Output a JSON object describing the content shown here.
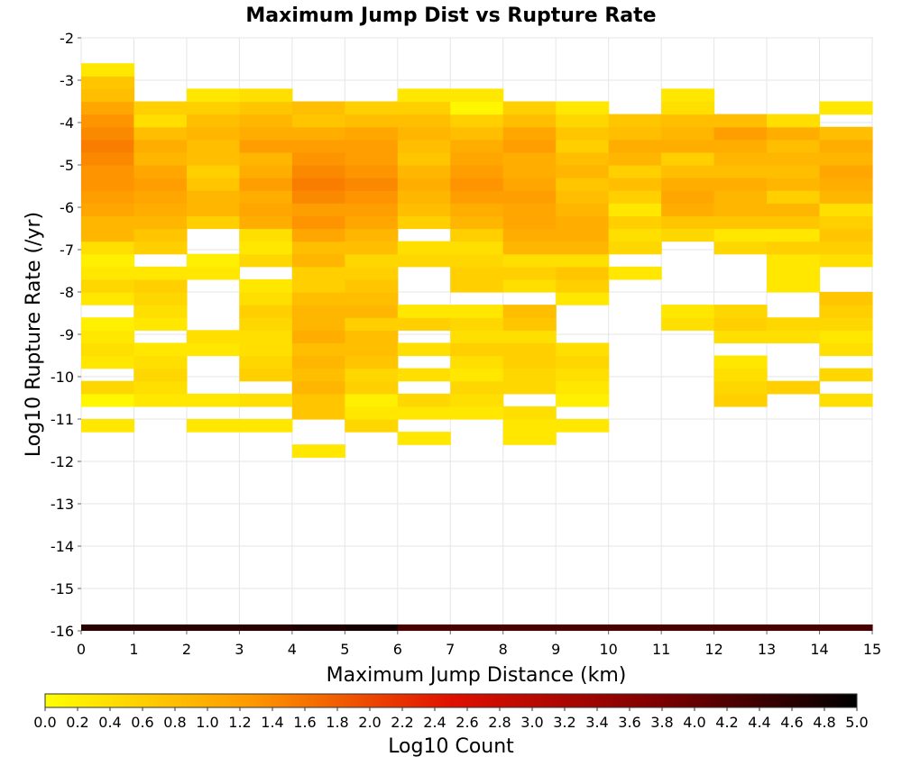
{
  "chart_data": {
    "type": "heatmap",
    "title": "Maximum Jump Dist vs Rupture Rate",
    "xlabel": "Maximum Jump Distance (km)",
    "ylabel": "Log10 Rupture Rate (/yr)",
    "xlim": [
      0,
      15
    ],
    "ylim": [
      -16,
      -2
    ],
    "x_ticks": [
      0,
      1,
      2,
      3,
      4,
      5,
      6,
      7,
      8,
      9,
      10,
      11,
      12,
      13,
      14,
      15
    ],
    "y_ticks": [
      -2,
      -3,
      -4,
      -5,
      -6,
      -7,
      -8,
      -9,
      -10,
      -11,
      -12,
      -13,
      -14,
      -15,
      -16
    ],
    "grid": true,
    "colorbar": {
      "label": "Log10 Count",
      "range": [
        0,
        5
      ],
      "ticks": [
        "0.0",
        "0.2",
        "0.4",
        "0.6",
        "0.8",
        "1.0",
        "1.2",
        "1.4",
        "1.6",
        "1.8",
        "2.0",
        "2.2",
        "2.4",
        "2.6",
        "2.8",
        "3.0",
        "3.2",
        "3.4",
        "3.6",
        "3.8",
        "4.0",
        "4.2",
        "4.4",
        "4.6",
        "4.8",
        "5.0"
      ],
      "colors": [
        "#ffff00",
        "#ff9a00",
        "#e01000",
        "#800000",
        "#000000"
      ]
    },
    "bin_x_width": 1,
    "bin_y_height": 0.3,
    "columns": [
      {
        "x0": 0,
        "y_lows": [
          -11.3,
          -10.7,
          -10.4,
          -9.8,
          -9.5,
          -9.2,
          -8.9,
          -8.3,
          -8.0,
          -7.7,
          -7.4,
          -7.1,
          -6.8,
          -6.5,
          -6.2,
          -5.9,
          -5.6,
          -5.3,
          -5.0,
          -4.7,
          -4.4,
          -4.1,
          -3.8,
          -3.5,
          -3.2,
          -2.9
        ],
        "values": [
          0.3,
          0.1,
          0.5,
          0.3,
          0.4,
          0.3,
          0.2,
          0.3,
          0.5,
          0.3,
          0.2,
          0.4,
          0.9,
          0.9,
          1.1,
          1.2,
          1.3,
          1.3,
          1.4,
          1.5,
          1.4,
          1.3,
          1.1,
          0.8,
          0.7,
          0.3
        ]
      },
      {
        "x0": 1,
        "y_lows": [
          -10.7,
          -10.4,
          -10.1,
          -9.8,
          -9.5,
          -8.9,
          -8.6,
          -8.3,
          -8.0,
          -7.7,
          -7.1,
          -6.8,
          -6.5,
          -6.2,
          -5.9,
          -5.6,
          -5.3,
          -5.0,
          -4.7,
          -4.4,
          -4.1,
          -3.8
        ],
        "values": [
          0.3,
          0.4,
          0.5,
          0.4,
          0.3,
          0.3,
          0.4,
          0.5,
          0.6,
          0.3,
          0.6,
          0.7,
          0.9,
          1.0,
          1.1,
          1.2,
          1.1,
          0.9,
          1.0,
          0.8,
          0.4,
          0.6
        ]
      },
      {
        "x0": 2,
        "y_lows": [
          -11.3,
          -10.7,
          -9.5,
          -9.2,
          -7.7,
          -7.4,
          -6.5,
          -6.2,
          -5.9,
          -5.6,
          -5.3,
          -5.0,
          -4.7,
          -4.4,
          -4.1,
          -3.8,
          -3.5
        ],
        "values": [
          0.3,
          0.3,
          0.3,
          0.4,
          0.3,
          0.2,
          0.6,
          0.9,
          0.9,
          0.7,
          0.6,
          0.8,
          0.8,
          0.9,
          0.8,
          0.6,
          0.3
        ]
      },
      {
        "x0": 3,
        "y_lows": [
          -11.3,
          -10.7,
          -10.1,
          -9.8,
          -9.5,
          -9.2,
          -8.9,
          -8.6,
          -8.3,
          -8.0,
          -7.4,
          -7.1,
          -6.8,
          -6.5,
          -6.2,
          -5.9,
          -5.6,
          -5.3,
          -5.0,
          -4.7,
          -4.4,
          -4.1,
          -3.8,
          -3.5
        ],
        "values": [
          0.3,
          0.4,
          0.6,
          0.5,
          0.4,
          0.4,
          0.5,
          0.6,
          0.4,
          0.3,
          0.5,
          0.3,
          0.4,
          1.0,
          1.1,
          1.0,
          1.2,
          1.0,
          0.9,
          1.2,
          1.0,
          0.9,
          0.7,
          0.4
        ]
      },
      {
        "x0": 4,
        "y_lows": [
          -11.9,
          -11.0,
          -10.7,
          -10.4,
          -10.1,
          -9.8,
          -9.5,
          -9.2,
          -8.9,
          -8.6,
          -8.3,
          -8.0,
          -7.7,
          -7.4,
          -7.1,
          -6.8,
          -6.5,
          -6.2,
          -5.9,
          -5.6,
          -5.3,
          -5.0,
          -4.7,
          -4.4,
          -4.1,
          -3.8
        ],
        "values": [
          0.3,
          0.7,
          0.7,
          0.9,
          0.8,
          0.9,
          0.8,
          1.0,
          0.9,
          0.9,
          0.8,
          0.6,
          0.6,
          0.9,
          0.8,
          1.1,
          1.3,
          1.2,
          1.4,
          1.5,
          1.4,
          1.3,
          1.2,
          1.0,
          0.7,
          0.8
        ]
      },
      {
        "x0": 5,
        "y_lows": [
          -11.3,
          -11.0,
          -10.7,
          -10.4,
          -10.1,
          -9.8,
          -9.5,
          -9.2,
          -8.9,
          -8.6,
          -8.3,
          -8.0,
          -7.7,
          -7.4,
          -7.1,
          -6.8,
          -6.5,
          -6.2,
          -5.9,
          -5.6,
          -5.3,
          -5.0,
          -4.7,
          -4.4,
          -4.1,
          -3.8
        ],
        "values": [
          0.5,
          0.3,
          0.2,
          0.6,
          0.5,
          0.7,
          0.8,
          0.8,
          0.6,
          0.9,
          0.8,
          0.7,
          0.6,
          0.5,
          0.8,
          0.9,
          1.1,
          1.2,
          1.3,
          1.4,
          1.3,
          1.2,
          1.2,
          1.1,
          0.8,
          0.6
        ]
      },
      {
        "x0": 6,
        "y_lows": [
          -11.6,
          -11.0,
          -10.7,
          -10.1,
          -9.5,
          -8.9,
          -8.6,
          -7.4,
          -7.1,
          -6.5,
          -6.2,
          -5.9,
          -5.6,
          -5.3,
          -5.0,
          -4.7,
          -4.4,
          -4.1,
          -3.8,
          -3.5
        ],
        "values": [
          0.3,
          0.3,
          0.5,
          0.4,
          0.4,
          0.6,
          0.3,
          0.5,
          0.4,
          0.6,
          0.8,
          0.9,
          1.0,
          0.9,
          0.7,
          0.8,
          0.9,
          0.8,
          0.6,
          0.3
        ]
      },
      {
        "x0": 7,
        "y_lows": [
          -11.0,
          -10.7,
          -10.4,
          -10.1,
          -9.8,
          -9.5,
          -9.2,
          -8.9,
          -8.6,
          -8.0,
          -7.7,
          -7.4,
          -7.1,
          -6.8,
          -6.5,
          -6.2,
          -5.9,
          -5.6,
          -5.3,
          -5.0,
          -4.7,
          -4.4,
          -4.1,
          -3.8,
          -3.5
        ],
        "values": [
          0.3,
          0.4,
          0.5,
          0.3,
          0.4,
          0.6,
          0.4,
          0.5,
          0.3,
          0.6,
          0.6,
          0.5,
          0.4,
          0.6,
          0.9,
          1.0,
          1.2,
          1.3,
          1.2,
          1.1,
          1.0,
          0.8,
          0.6,
          0.1,
          0.3
        ]
      },
      {
        "x0": 8,
        "y_lows": [
          -11.6,
          -11.3,
          -11.0,
          -10.4,
          -10.1,
          -9.8,
          -9.5,
          -9.2,
          -8.9,
          -8.6,
          -8.0,
          -7.7,
          -7.4,
          -7.1,
          -6.8,
          -6.5,
          -6.2,
          -5.9,
          -5.6,
          -5.3,
          -5.0,
          -4.7,
          -4.4,
          -4.1,
          -3.8
        ],
        "values": [
          0.3,
          0.3,
          0.4,
          0.5,
          0.5,
          0.6,
          0.6,
          0.4,
          0.7,
          0.8,
          0.4,
          0.6,
          0.4,
          0.9,
          1.0,
          1.1,
          1.1,
          1.2,
          1.1,
          1.0,
          1.0,
          1.2,
          1.1,
          0.8,
          0.6
        ]
      },
      {
        "x0": 9,
        "y_lows": [
          -11.3,
          -10.7,
          -10.4,
          -10.1,
          -9.8,
          -9.5,
          -8.3,
          -8.0,
          -7.7,
          -7.4,
          -7.1,
          -6.8,
          -6.5,
          -6.2,
          -5.9,
          -5.6,
          -5.3,
          -5.0,
          -4.7,
          -4.4,
          -4.1,
          -3.8
        ],
        "values": [
          0.3,
          0.2,
          0.3,
          0.4,
          0.5,
          0.4,
          0.3,
          0.6,
          0.7,
          0.4,
          0.9,
          1.0,
          1.0,
          0.9,
          0.8,
          0.7,
          0.9,
          0.8,
          0.6,
          0.7,
          0.5,
          0.3
        ]
      },
      {
        "x0": 10,
        "y_lows": [
          -7.7,
          -7.1,
          -6.8,
          -6.5,
          -6.2,
          -5.9,
          -5.6,
          -5.3,
          -5.0,
          -4.7,
          -4.4,
          -4.1
        ],
        "values": [
          0.3,
          0.5,
          0.4,
          0.6,
          0.3,
          0.6,
          0.8,
          0.6,
          0.9,
          1.0,
          0.8,
          0.7
        ]
      },
      {
        "x0": 11,
        "y_lows": [
          -8.9,
          -8.6,
          -6.8,
          -6.5,
          -6.2,
          -5.9,
          -5.6,
          -5.3,
          -5.0,
          -4.7,
          -4.4,
          -4.1,
          -3.8,
          -3.5
        ],
        "values": [
          0.4,
          0.3,
          0.5,
          0.7,
          1.0,
          1.1,
          1.0,
          0.8,
          0.6,
          1.0,
          0.9,
          0.8,
          0.4,
          0.3
        ]
      },
      {
        "x0": 12,
        "y_lows": [
          -10.7,
          -10.4,
          -10.1,
          -9.8,
          -9.2,
          -8.9,
          -8.6,
          -7.1,
          -6.8,
          -6.5,
          -6.2,
          -5.9,
          -5.6,
          -5.3,
          -5.0,
          -4.7,
          -4.4,
          -4.1
        ],
        "values": [
          0.6,
          0.5,
          0.4,
          0.3,
          0.4,
          0.6,
          0.5,
          0.5,
          0.3,
          0.7,
          0.9,
          0.9,
          1.0,
          0.8,
          0.9,
          1.0,
          1.2,
          0.8
        ]
      },
      {
        "x0": 13,
        "y_lows": [
          -10.4,
          -9.2,
          -8.9,
          -8.0,
          -7.7,
          -7.4,
          -7.1,
          -6.8,
          -6.5,
          -6.2,
          -5.9,
          -5.6,
          -5.3,
          -5.0,
          -4.7,
          -4.4,
          -4.1
        ],
        "values": [
          0.6,
          0.4,
          0.5,
          0.3,
          0.3,
          0.3,
          0.6,
          0.3,
          0.7,
          0.9,
          0.6,
          0.9,
          0.8,
          0.9,
          0.8,
          1.0,
          0.4
        ]
      },
      {
        "x0": 14,
        "y_lows": [
          -10.7,
          -10.1,
          -9.5,
          -9.2,
          -8.9,
          -8.6,
          -8.3,
          -7.4,
          -7.1,
          -6.8,
          -6.5,
          -6.2,
          -5.9,
          -5.6,
          -5.3,
          -5.0,
          -4.7,
          -4.4,
          -3.8
        ],
        "values": [
          0.4,
          0.5,
          0.4,
          0.3,
          0.5,
          0.6,
          0.7,
          0.4,
          0.6,
          0.7,
          0.6,
          0.4,
          0.9,
          1.0,
          1.1,
          0.9,
          1.0,
          0.8,
          0.3
        ]
      }
    ],
    "bottom_row": {
      "y_low": -16,
      "height": 0.15,
      "values": [
        4.6,
        4.6,
        4.6,
        4.6,
        4.7,
        4.8,
        4.3,
        4.3,
        4.3,
        4.3,
        4.3,
        4.3,
        4.3,
        4.3,
        4.3
      ]
    }
  }
}
